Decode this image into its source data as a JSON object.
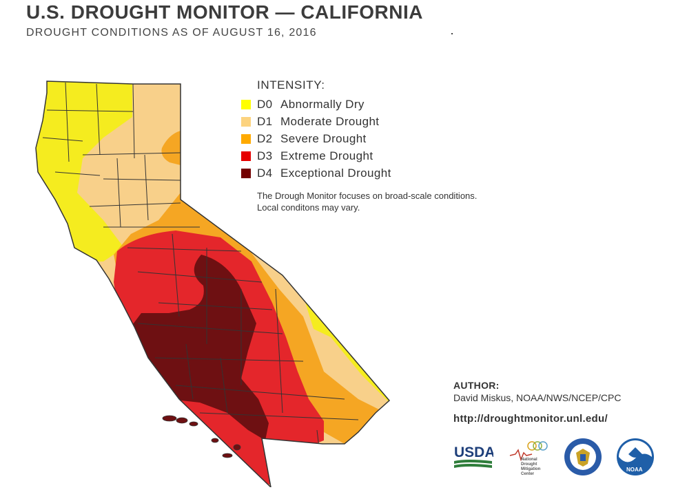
{
  "header": {
    "title": "U.S. DROUGHT MONITOR — CALIFORNIA",
    "subtitle": "DROUGHT CONDITIONS AS OF AUGUST 16, 2016"
  },
  "legend": {
    "heading": "INTENSITY:",
    "items": [
      {
        "code": "D0",
        "label": "Abnormally Dry",
        "color": "#ffff00"
      },
      {
        "code": "D1",
        "label": "Moderate Drought",
        "color": "#fcd37f"
      },
      {
        "code": "D2",
        "label": "Severe Drought",
        "color": "#ffaa00"
      },
      {
        "code": "D3",
        "label": "Extreme Drought",
        "color": "#e60000"
      },
      {
        "code": "D4",
        "label": "Exceptional Drought",
        "color": "#730000"
      }
    ],
    "note_line1": "The Drough Monitor focuses on broad-scale conditions.",
    "note_line2": "Local conditons may vary."
  },
  "credits": {
    "author_heading": "AUTHOR:",
    "author_name": "David Miskus, NOAA/NWS/NCEP/CPC",
    "url": "http://droughtmonitor.unl.edu/"
  },
  "logos": {
    "usda": "USDA",
    "ndmc_line1": "National",
    "ndmc_line2": "Drought",
    "ndmc_line3": "Mitigation",
    "ndmc_line4": "Center",
    "noaa": "NOAA"
  },
  "map_colors": {
    "d0": "#f5ec1f",
    "d1": "#f8d08a",
    "d2": "#f5a623",
    "d3": "#e4262b",
    "d4": "#6e1012",
    "border": "#333333"
  }
}
